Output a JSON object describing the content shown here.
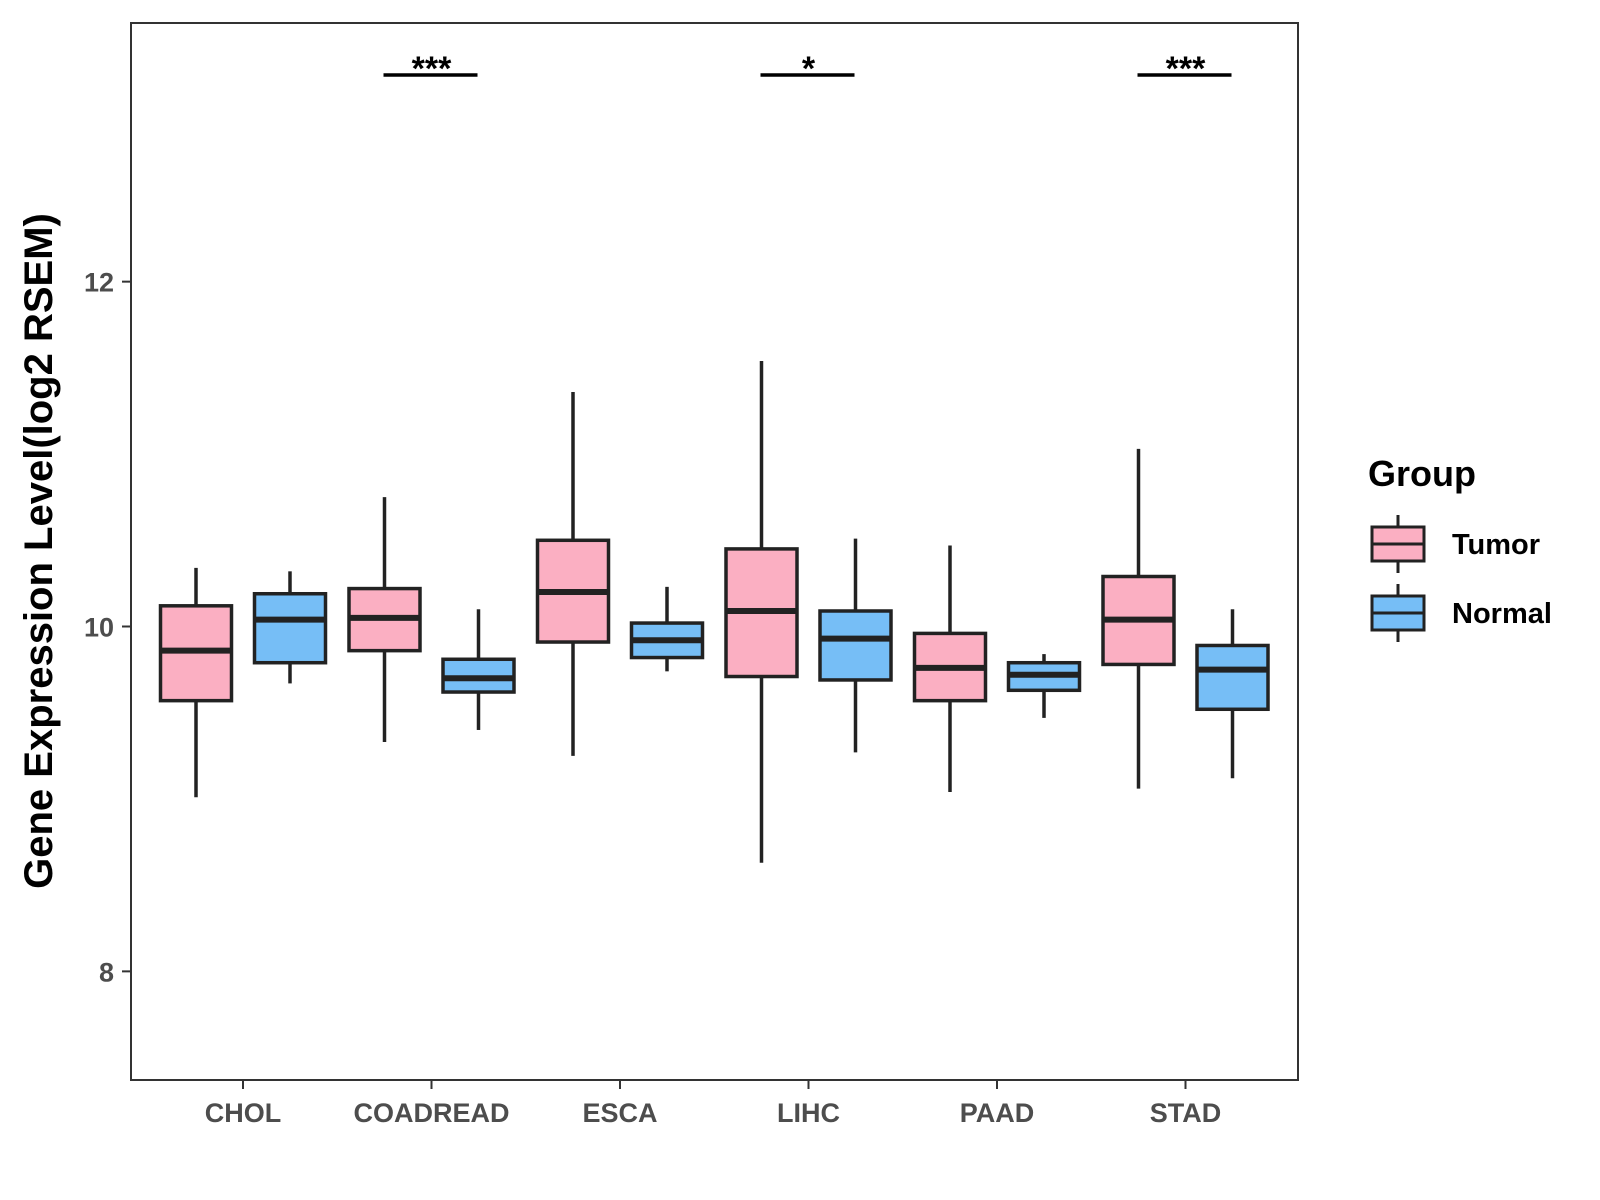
{
  "chart_data": {
    "type": "boxplot",
    "ylabel": "Gene Expression Level(log2 RSEM)",
    "xlabel": "",
    "ylim": [
      7.37,
      13.5
    ],
    "yticks": [
      8,
      10,
      12
    ],
    "grid": false,
    "categories": [
      "CHOL",
      "COADREAD",
      "ESCA",
      "LIHC",
      "PAAD",
      "STAD"
    ],
    "legend": {
      "title": "Group",
      "position": "right",
      "entries": [
        {
          "name": "Tumor",
          "color": "#FBAFC2"
        },
        {
          "name": "Normal",
          "color": "#76BEF6"
        }
      ]
    },
    "series": [
      {
        "name": "Tumor",
        "color": "#FBAFC2",
        "boxes": [
          {
            "category": "CHOL",
            "min": 9.01,
            "q1": 9.57,
            "median": 9.86,
            "q3": 10.12,
            "max": 10.34
          },
          {
            "category": "COADREAD",
            "min": 9.33,
            "q1": 9.86,
            "median": 10.05,
            "q3": 10.22,
            "max": 10.75
          },
          {
            "category": "ESCA",
            "min": 9.25,
            "q1": 9.91,
            "median": 10.2,
            "q3": 10.5,
            "max": 11.36
          },
          {
            "category": "LIHC",
            "min": 8.63,
            "q1": 9.71,
            "median": 10.09,
            "q3": 10.45,
            "max": 11.54
          },
          {
            "category": "PAAD",
            "min": 9.04,
            "q1": 9.57,
            "median": 9.76,
            "q3": 9.96,
            "max": 10.47
          },
          {
            "category": "STAD",
            "min": 9.06,
            "q1": 9.78,
            "median": 10.04,
            "q3": 10.29,
            "max": 11.03
          }
        ]
      },
      {
        "name": "Normal",
        "color": "#76BEF6",
        "boxes": [
          {
            "category": "CHOL",
            "min": 9.67,
            "q1": 9.79,
            "median": 10.04,
            "q3": 10.19,
            "max": 10.32
          },
          {
            "category": "COADREAD",
            "min": 9.4,
            "q1": 9.62,
            "median": 9.7,
            "q3": 9.81,
            "max": 10.1
          },
          {
            "category": "ESCA",
            "min": 9.74,
            "q1": 9.82,
            "median": 9.92,
            "q3": 10.02,
            "max": 10.23
          },
          {
            "category": "LIHC",
            "min": 9.27,
            "q1": 9.69,
            "median": 9.93,
            "q3": 10.09,
            "max": 10.51
          },
          {
            "category": "PAAD",
            "min": 9.47,
            "q1": 9.63,
            "median": 9.72,
            "q3": 9.79,
            "max": 9.84
          },
          {
            "category": "STAD",
            "min": 9.12,
            "q1": 9.52,
            "median": 9.75,
            "q3": 9.89,
            "max": 10.1
          }
        ]
      }
    ],
    "significance": [
      {
        "category": "COADREAD",
        "label": "***"
      },
      {
        "category": "LIHC",
        "label": "*"
      },
      {
        "category": "STAD",
        "label": "***"
      }
    ]
  }
}
